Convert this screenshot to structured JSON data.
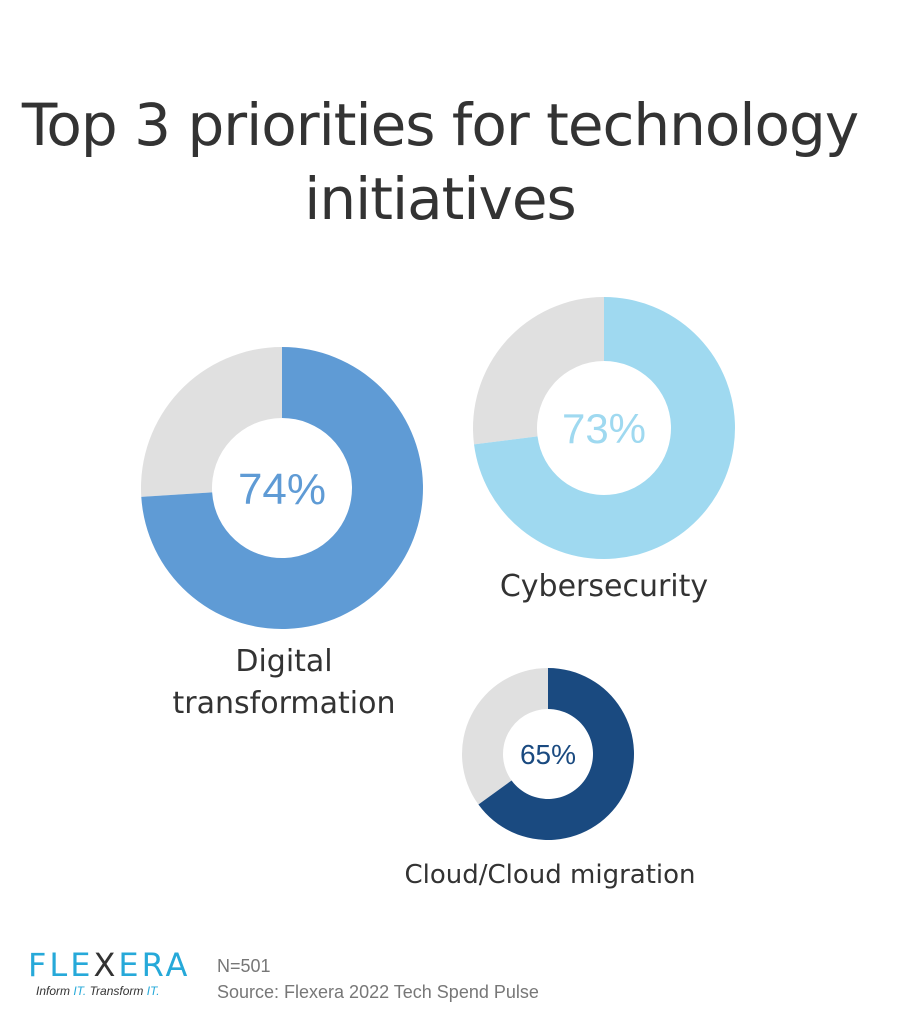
{
  "chart_data": {
    "type": "pie",
    "title": "Top 3 priorities for technology initiatives",
    "series": [
      {
        "name": "Digital transformation",
        "value": 74,
        "label": "74%",
        "color": "#5f9bd5"
      },
      {
        "name": "Cybersecurity",
        "value": 73,
        "label": "73%",
        "color": "#9fd9f0"
      },
      {
        "name": "Cloud/Cloud migration",
        "value": 65,
        "label": "65%",
        "color": "#1a4a80"
      }
    ],
    "remainder_color": "#e0e0e0"
  },
  "labels": {
    "digital_line1": "Digital",
    "digital_line2": "transformation",
    "cyber": "Cybersecurity",
    "cloud": "Cloud/Cloud migration"
  },
  "footer": {
    "n": "N=501",
    "source": "Source: Flexera 2022 Tech Spend Pulse"
  },
  "logo": {
    "word": "FLEXERA",
    "tagline": "Inform IT. Transform IT."
  }
}
